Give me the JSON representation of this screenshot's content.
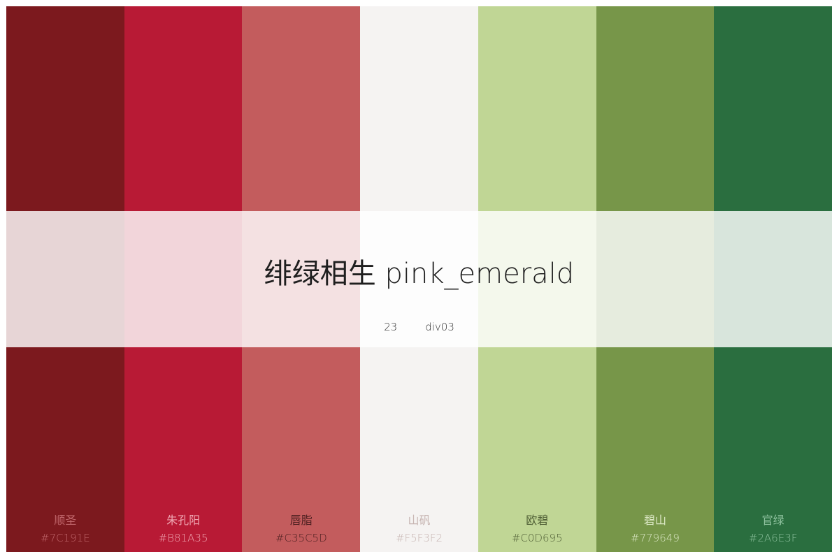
{
  "title": "绯绿相生 pink_emerald",
  "meta": {
    "count": "23",
    "code": "div03"
  },
  "swatches": [
    {
      "name": "顺圣",
      "hex": "#7C191E",
      "text_color": "#C0666B"
    },
    {
      "name": "朱孔阳",
      "hex": "#B81A35",
      "text_color": "#F0A7B2"
    },
    {
      "name": "唇脂",
      "hex": "#C35C5D",
      "text_color": "#4A1E1F"
    },
    {
      "name": "山矾",
      "hex": "#F5F3F2",
      "text_color": "#C7B5B2"
    },
    {
      "name": "欧碧",
      "hex": "#C0D695",
      "text_color": "#4F5E35"
    },
    {
      "name": "碧山",
      "hex": "#779649",
      "text_color": "#DCE8C6"
    },
    {
      "name": "官绿",
      "hex": "#2A6E3F",
      "text_color": "#8CC09C"
    }
  ]
}
